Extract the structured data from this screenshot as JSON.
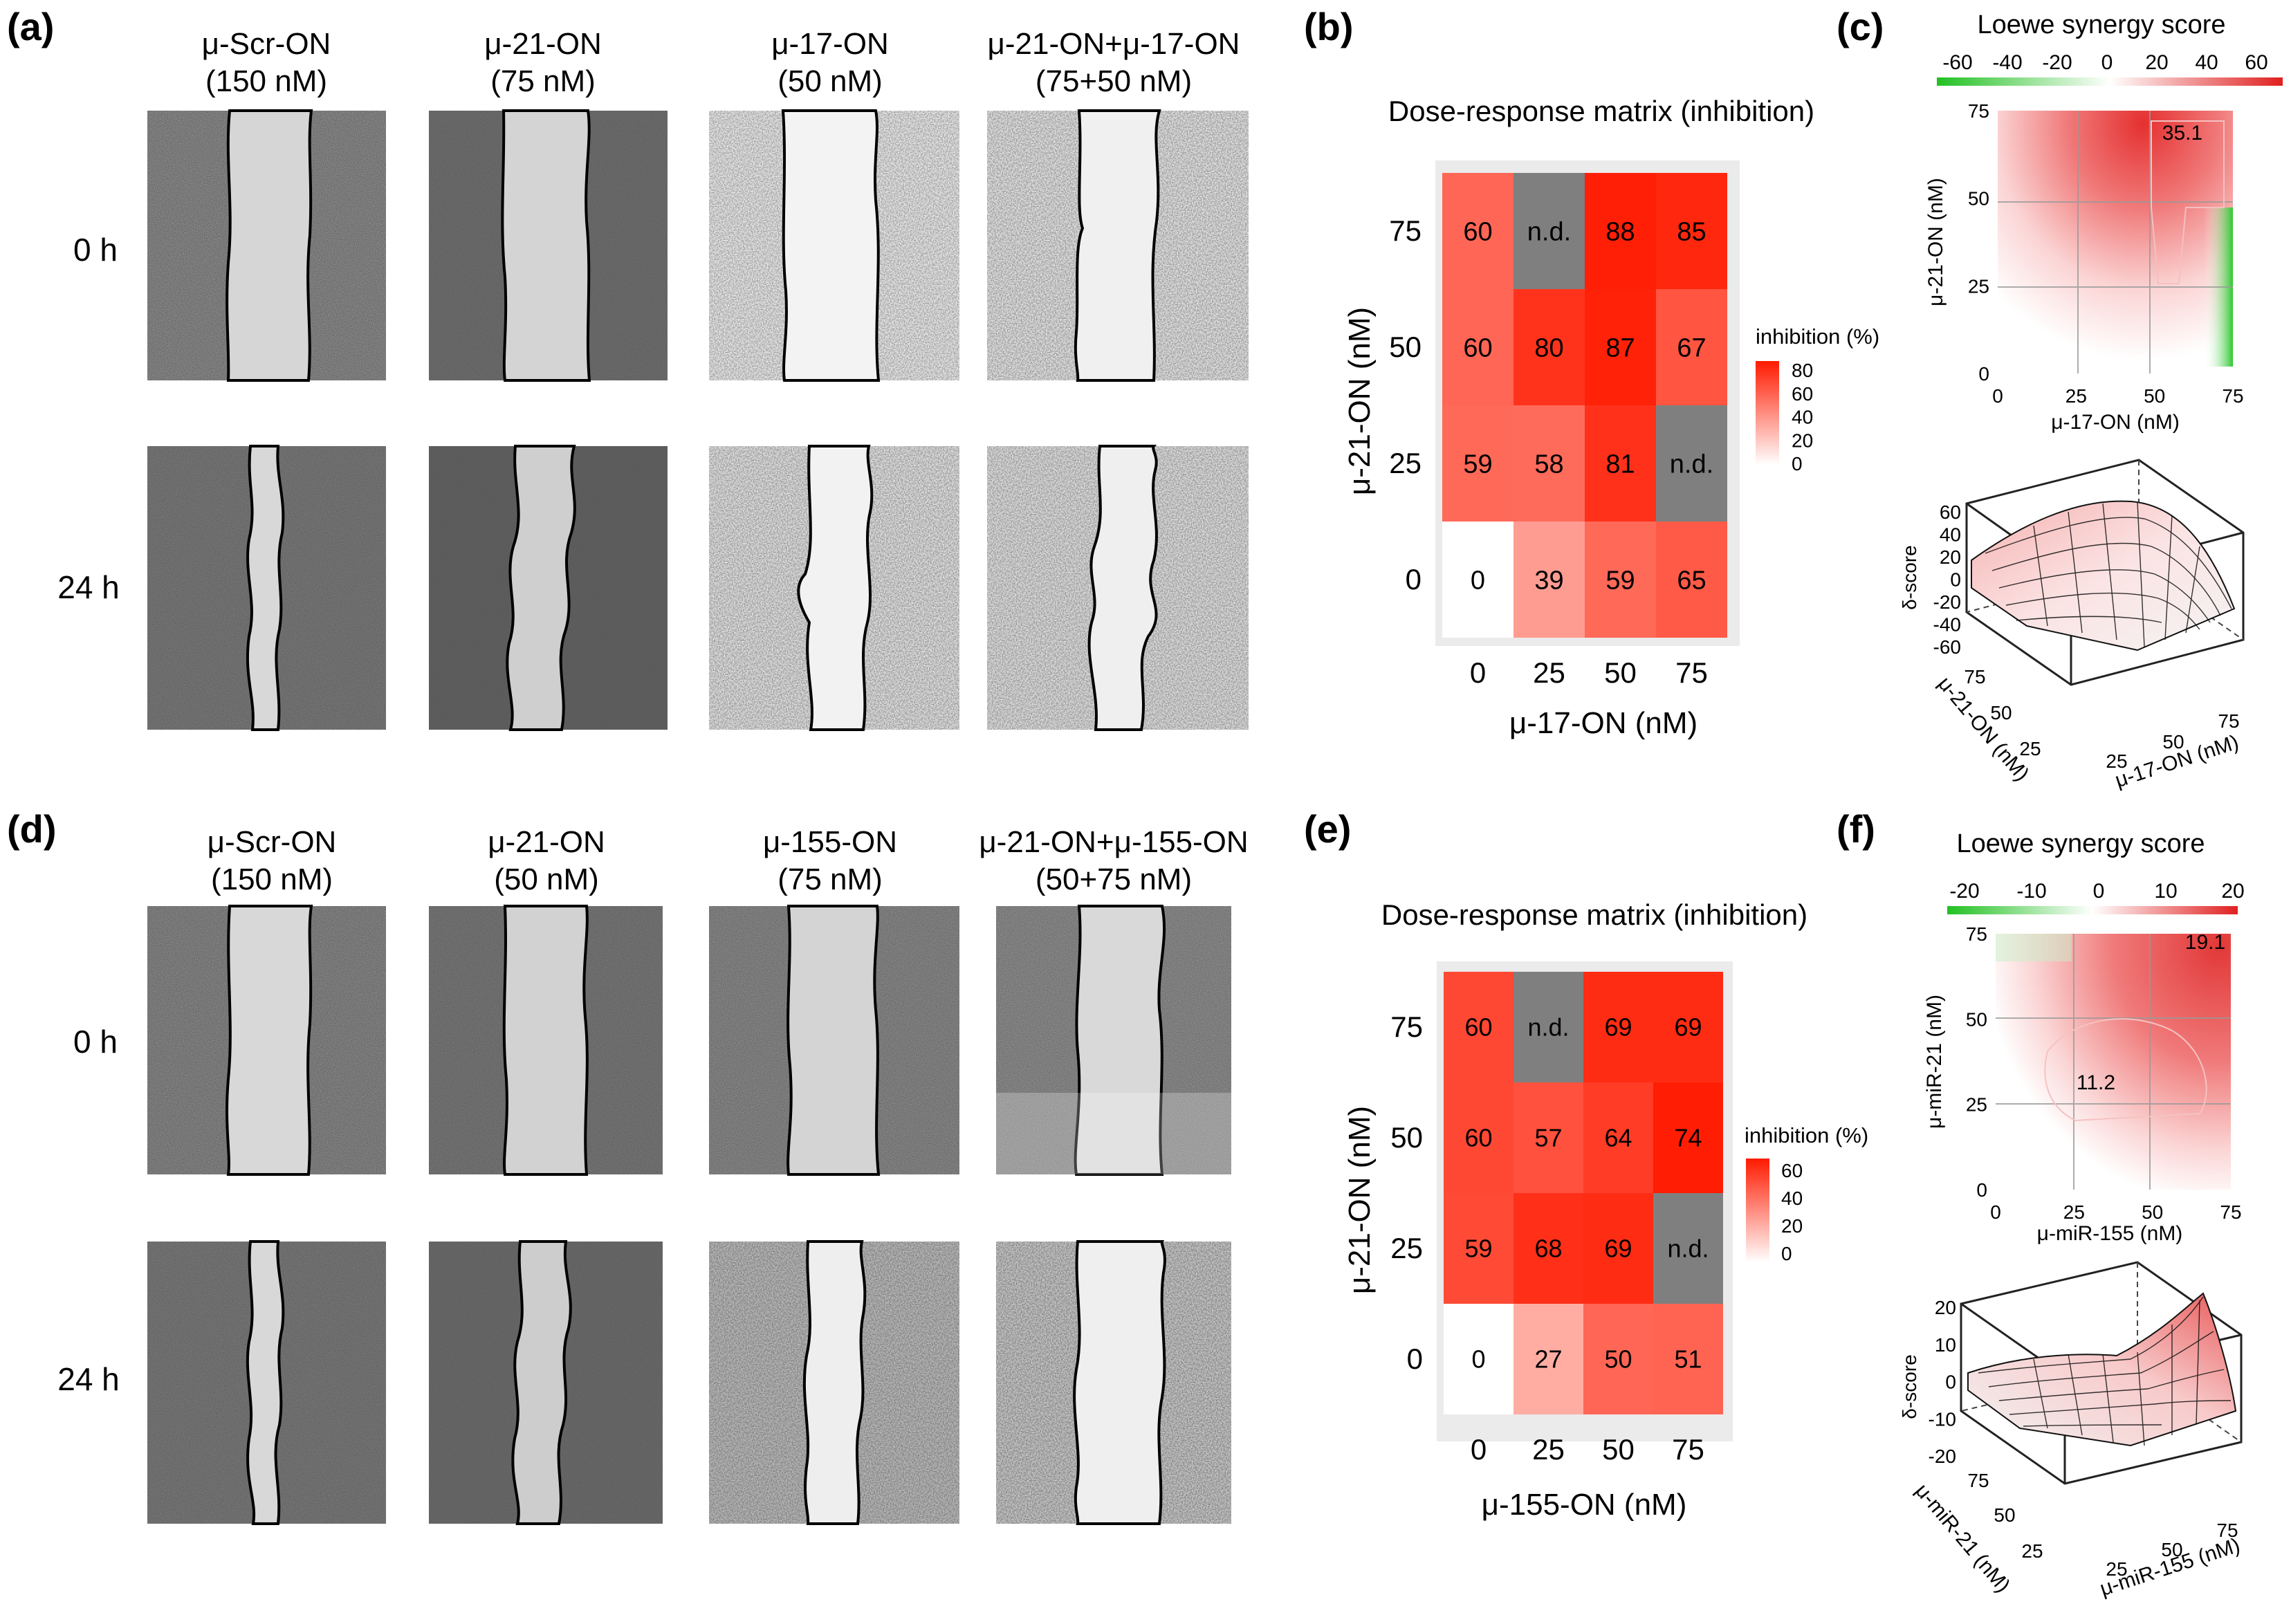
{
  "panels": {
    "a": "(a)",
    "b": "(b)",
    "c": "(c)",
    "d": "(d)",
    "e": "(e)",
    "f": "(f)"
  },
  "scratch": [
    {
      "time_labels": [
        "0 h",
        "24 h"
      ],
      "columns": [
        {
          "name": "μ-Scr-ON",
          "dose": "(150 nM)"
        },
        {
          "name": "μ-21-ON",
          "dose": "(75 nM)"
        },
        {
          "name": "μ-17-ON",
          "dose": "(50 nM)"
        },
        {
          "name": "μ-21-ON+μ-17-ON",
          "dose": "(75+50 nM)"
        }
      ]
    },
    {
      "time_labels": [
        "0 h",
        "24 h"
      ],
      "columns": [
        {
          "name": "μ-Scr-ON",
          "dose": "(150 nM)"
        },
        {
          "name": "μ-21-ON",
          "dose": "(50 nM)"
        },
        {
          "name": "μ-155-ON",
          "dose": "(75 nM)"
        },
        {
          "name": "μ-21-ON+μ-155-ON",
          "dose": "(50+75 nM)"
        }
      ]
    }
  ],
  "chart_data": [
    {
      "id": "b",
      "type": "heatmap",
      "title": "Dose-response matrix (inhibition)",
      "xlabel": "μ-17-ON (nM)",
      "ylabel": "μ-21-ON (nM)",
      "x": [
        "0",
        "25",
        "50",
        "75"
      ],
      "y": [
        "0",
        "25",
        "50",
        "75"
      ],
      "values": [
        [
          "0",
          "39",
          "59",
          "65"
        ],
        [
          "59",
          "58",
          "81",
          "n.d."
        ],
        [
          "60",
          "80",
          "87",
          "67"
        ],
        [
          "60",
          "n.d.",
          "88",
          "85"
        ]
      ],
      "legend_title": "inhibition (%)",
      "legend_ticks": [
        "80",
        "60",
        "40",
        "20",
        "0"
      ],
      "legend_max": 90,
      "colors": {
        "low": "#ffffff",
        "high": "#ff1a00",
        "na": "#7f7f7f"
      }
    },
    {
      "id": "c",
      "type": "heatmap",
      "title": "Loewe synergy score",
      "scale_ticks": [
        "-60",
        "-40",
        "-20",
        "0",
        "20",
        "40",
        "60"
      ],
      "xlabel": "μ-17-ON (nM)",
      "ylabel": "μ-21-ON (nM)",
      "x_ticks": [
        "0",
        "25",
        "50",
        "75"
      ],
      "y_ticks": [
        "0",
        "25",
        "50",
        "75"
      ],
      "peak_label": "35.1",
      "surface": {
        "zlabel": "δ-score",
        "z_ticks": [
          "60",
          "40",
          "20",
          "0",
          "-20",
          "-40",
          "-60"
        ],
        "xlabel": "μ-17-ON (nM)",
        "ylabel": "μ-21-ON (nM)",
        "x_ticks": [
          "25",
          "50",
          "75"
        ],
        "y_ticks": [
          "75",
          "50",
          "25"
        ]
      },
      "colors": {
        "pos": "#e02020",
        "neg": "#22c022"
      }
    },
    {
      "id": "e",
      "type": "heatmap",
      "title": "Dose-response matrix (inhibition)",
      "xlabel": "μ-155-ON (nM)",
      "ylabel": "μ-21-ON (nM)",
      "x": [
        "0",
        "25",
        "50",
        "75"
      ],
      "y": [
        "0",
        "25",
        "50",
        "75"
      ],
      "values": [
        [
          "0",
          "27",
          "50",
          "51"
        ],
        [
          "59",
          "68",
          "69",
          "n.d."
        ],
        [
          "60",
          "57",
          "64",
          "74"
        ],
        [
          "60",
          "n.d.",
          "69",
          "69"
        ]
      ],
      "legend_title": "inhibition (%)",
      "legend_ticks": [
        "60",
        "40",
        "20",
        "0"
      ],
      "legend_max": 75,
      "colors": {
        "low": "#ffffff",
        "high": "#ff1a00",
        "na": "#7f7f7f"
      }
    },
    {
      "id": "f",
      "type": "heatmap",
      "title": "Loewe synergy score",
      "scale_ticks": [
        "-20",
        "-10",
        "0",
        "10",
        "20"
      ],
      "xlabel": "μ-miR-155 (nM)",
      "ylabel": "μ-miR-21 (nM)",
      "x_ticks": [
        "0",
        "25",
        "50",
        "75"
      ],
      "y_ticks": [
        "0",
        "25",
        "50",
        "75"
      ],
      "peak_label": "19.1",
      "mid_label": "11.2",
      "surface": {
        "zlabel": "δ-score",
        "z_ticks": [
          "20",
          "10",
          "0",
          "-10",
          "-20"
        ],
        "xlabel": "μ-miR-155 (nM)",
        "ylabel": "μ-miR-21 (nM)",
        "x_ticks": [
          "25",
          "50",
          "75"
        ],
        "y_ticks": [
          "75",
          "50",
          "25"
        ]
      },
      "colors": {
        "pos": "#e02020",
        "neg": "#22c022"
      }
    }
  ]
}
